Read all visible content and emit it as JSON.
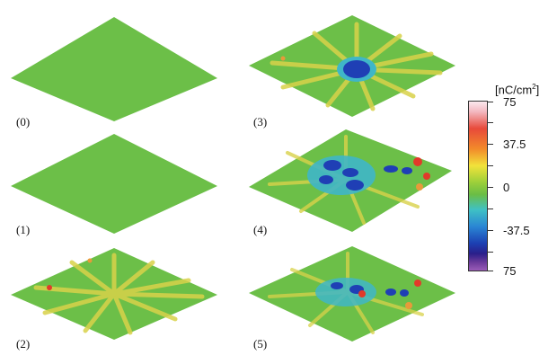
{
  "panels": [
    {
      "label": "(0)"
    },
    {
      "label": "(1)"
    },
    {
      "label": "(2)"
    },
    {
      "label": "(3)"
    },
    {
      "label": "(4)"
    },
    {
      "label": "(5)"
    }
  ],
  "colorbar": {
    "unit_prefix": "[nC/cm",
    "unit_power": "2",
    "unit_suffix": "]",
    "ticks": [
      "75",
      "37.5",
      "0",
      "-37.5",
      "75"
    ]
  },
  "colors": {
    "plate_green": "#6cbf48",
    "streak_yellow": "#d9d24a",
    "charge_blue": "#1f3fb5",
    "charge_cyan": "#3fb6c8",
    "charge_red": "#e23a2a"
  }
}
